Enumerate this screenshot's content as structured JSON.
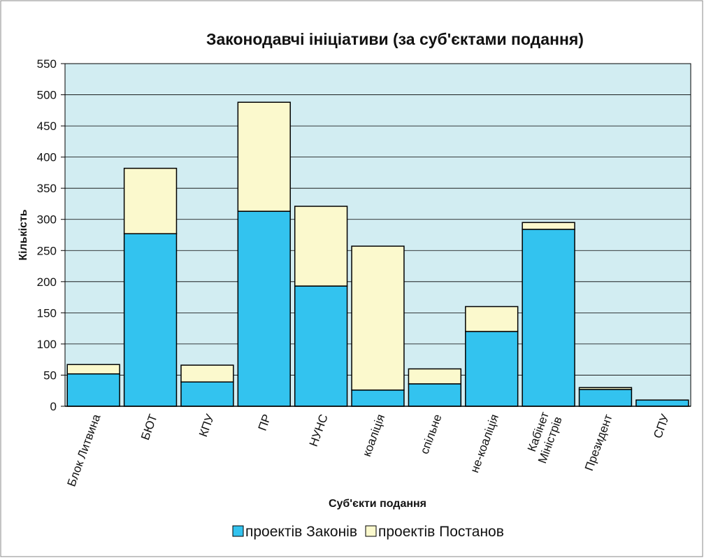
{
  "chart_data": {
    "type": "stacked_bar",
    "title": "Законодавчі ініціативи (за суб'єктами подання)",
    "x_label": "Суб'єкти подання",
    "y_label": "Кількість",
    "categories": [
      "Блок Литвина",
      "БЮТ",
      "КПУ",
      "ПР",
      "НУНС",
      "коаліція",
      "спільне",
      "не-коаліція",
      "Кабінет\nМіністрів",
      "Президент",
      "СПУ"
    ],
    "series": [
      {
        "name": "проектів Законів",
        "color": "#33c3ef",
        "values": [
          52,
          277,
          39,
          313,
          193,
          26,
          36,
          120,
          284,
          27,
          10
        ]
      },
      {
        "name": "проектів Постанов",
        "color": "#fbf9cd",
        "values": [
          15,
          105,
          27,
          175,
          128,
          231,
          24,
          40,
          11,
          3,
          0
        ]
      }
    ],
    "ylim": [
      0,
      550
    ],
    "yticks": [
      0,
      50,
      100,
      150,
      200,
      250,
      300,
      350,
      400,
      450,
      500,
      550
    ],
    "grid": true,
    "legend": "bottom"
  }
}
